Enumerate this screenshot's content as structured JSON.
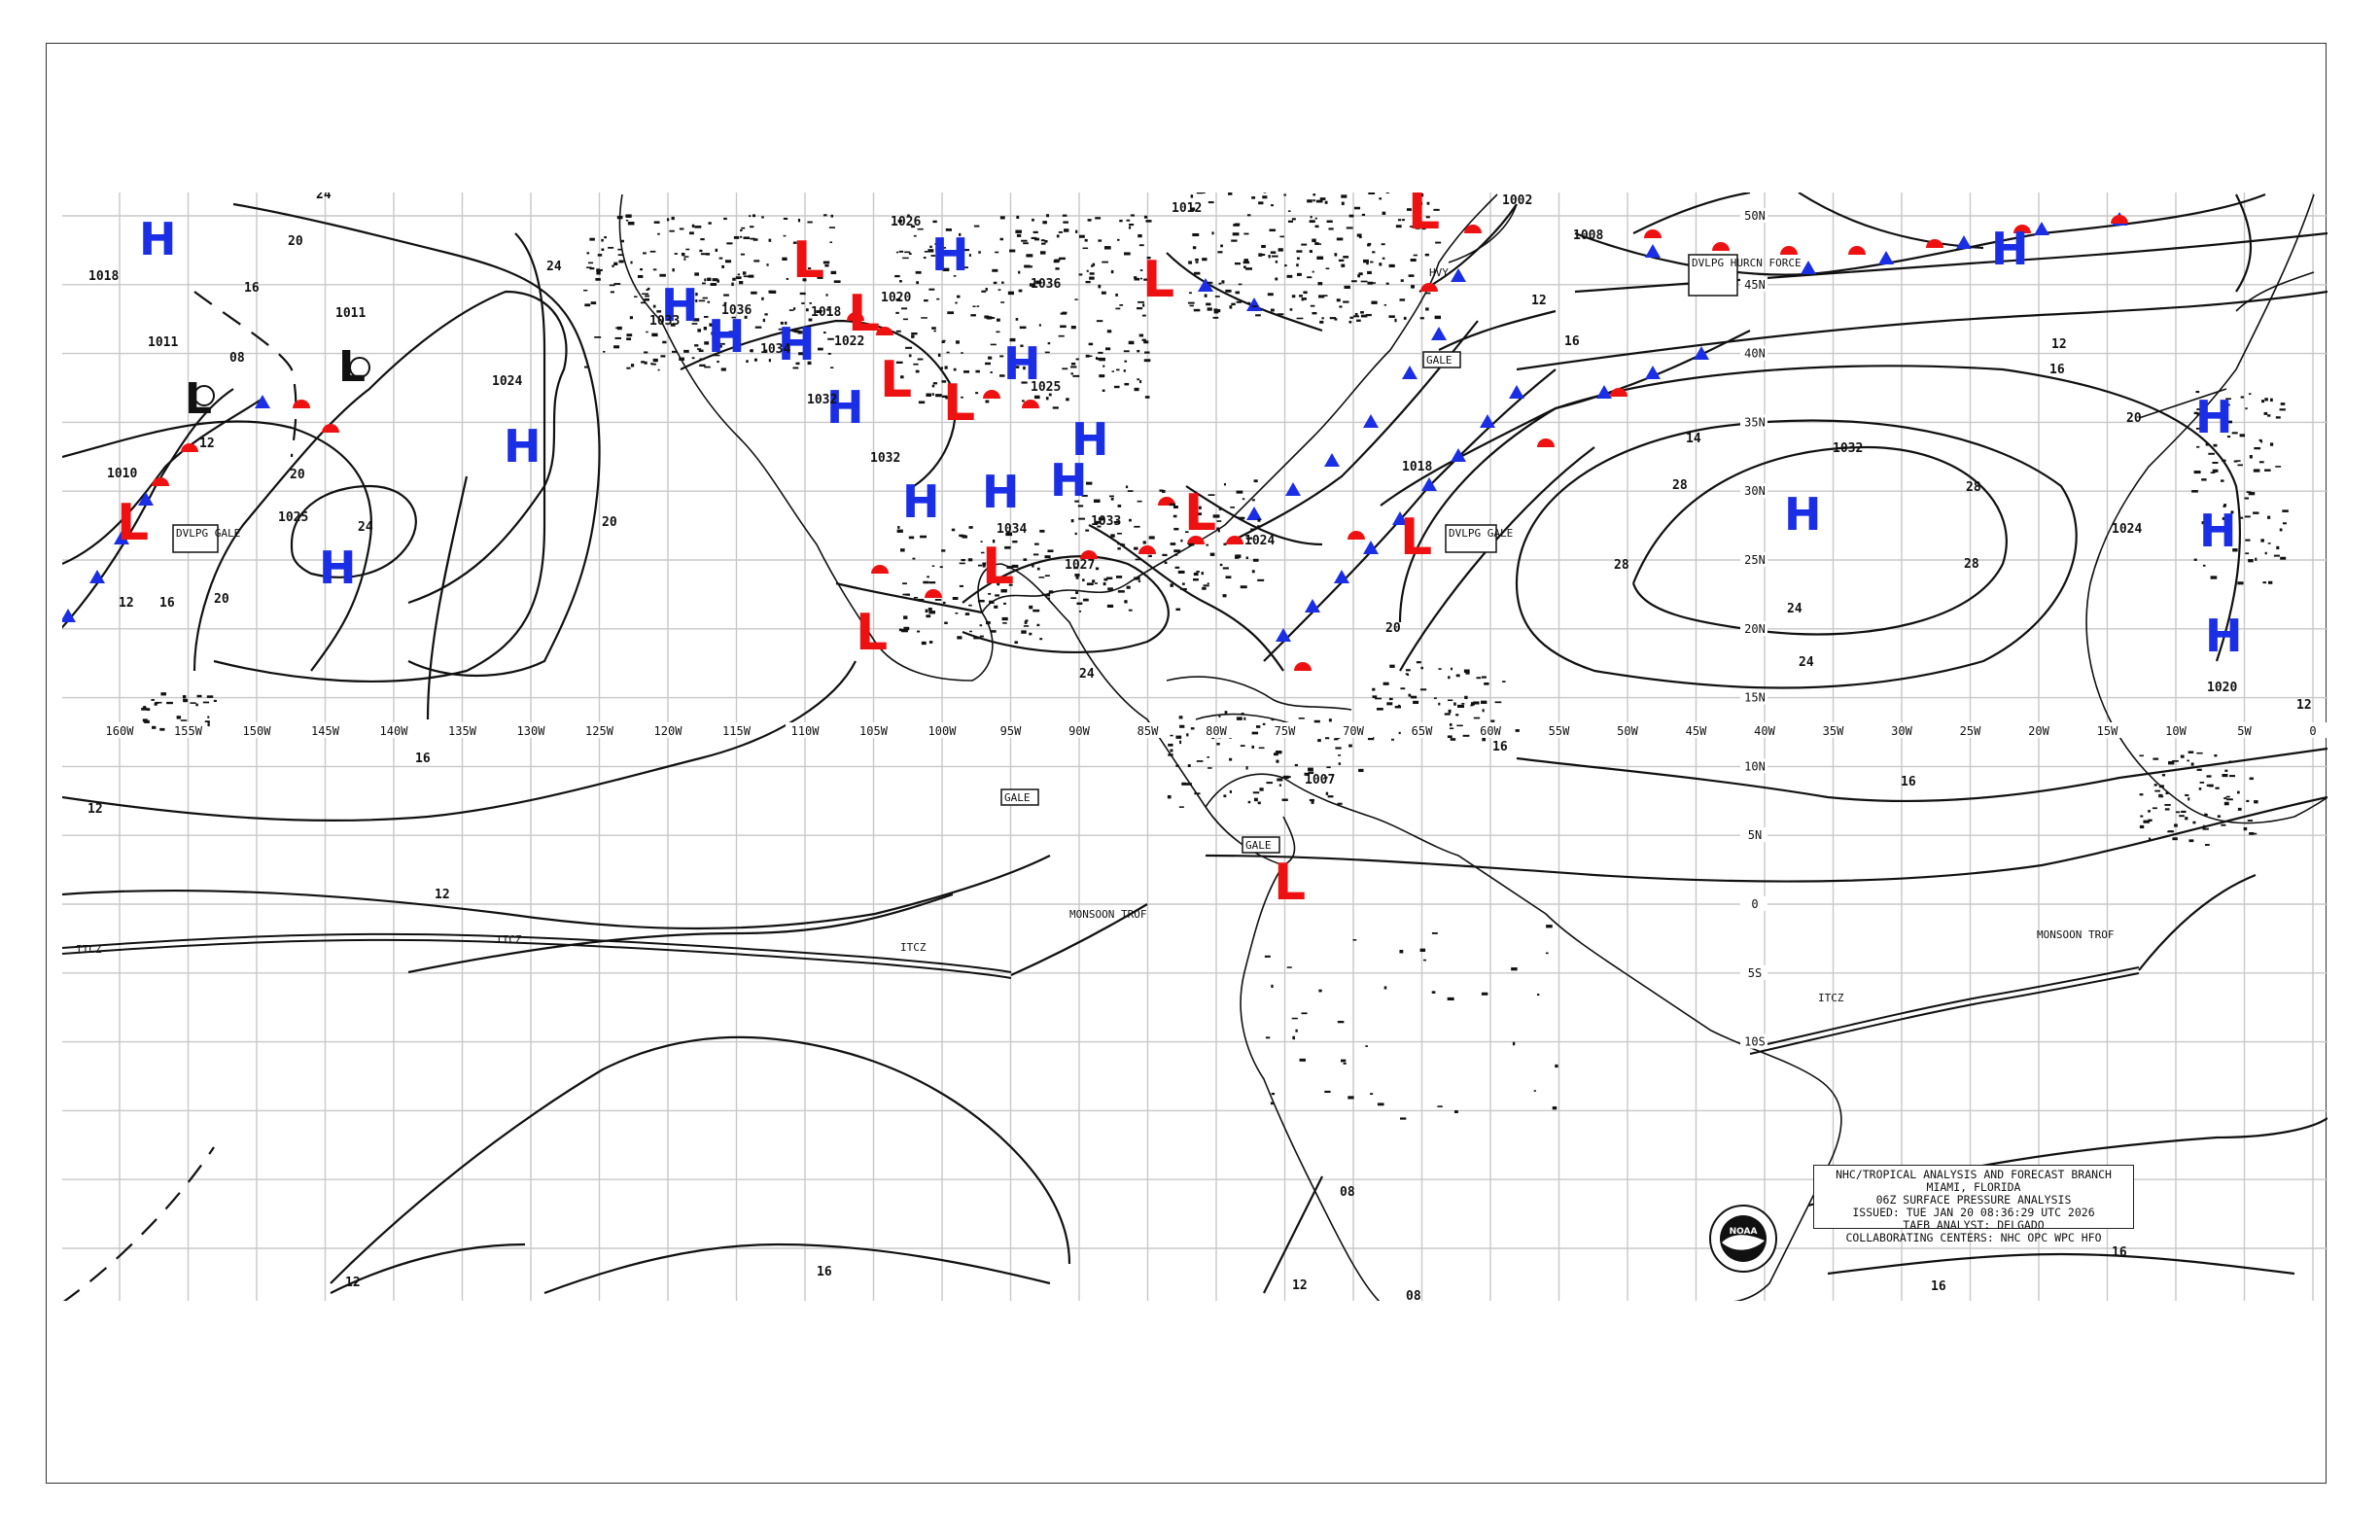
{
  "map": {
    "legend": {
      "line1": "NHC/TROPICAL ANALYSIS AND FORECAST BRANCH",
      "line2": "MIAMI, FLORIDA",
      "line3": "06Z SURFACE PRESSURE ANALYSIS",
      "line4": "ISSUED: TUE JAN 20 08:36:29 UTC 2026",
      "line5": "TAFB ANALYST: DELGADO",
      "line6": "COLLABORATING CENTERS: NHC OPC WPC HFO"
    },
    "logo_text": "NOAA",
    "longitudes": [
      "160W",
      "155W",
      "150W",
      "145W",
      "140W",
      "135W",
      "130W",
      "125W",
      "120W",
      "115W",
      "110W",
      "105W",
      "100W",
      "95W",
      "90W",
      "85W",
      "80W",
      "75W",
      "70W",
      "65W",
      "60W",
      "55W",
      "50W",
      "45W",
      "40W",
      "35W",
      "30W",
      "25W",
      "20W",
      "15W",
      "10W",
      "5W",
      "0"
    ],
    "latitudes": [
      "50N",
      "45N",
      "40N",
      "35N",
      "30N",
      "25N",
      "20N",
      "15N",
      "10N",
      "5N",
      "0",
      "5S",
      "10S"
    ],
    "colors": {
      "high": "#1a2ee6",
      "low": "#ee1111",
      "frame": "#333333"
    },
    "highs": [
      {
        "label": "H"
      },
      {
        "label": "H"
      },
      {
        "label": "H"
      },
      {
        "label": "H"
      },
      {
        "label": "H"
      },
      {
        "label": "H"
      },
      {
        "label": "H"
      },
      {
        "label": "H"
      },
      {
        "label": "H"
      },
      {
        "label": "H"
      },
      {
        "label": "H"
      },
      {
        "label": "H"
      },
      {
        "label": "H"
      },
      {
        "label": "H"
      },
      {
        "label": "H"
      },
      {
        "label": "H"
      },
      {
        "label": "H"
      },
      {
        "label": "H"
      }
    ],
    "lows": [
      {
        "label": "L"
      },
      {
        "label": "L"
      },
      {
        "label": "L"
      },
      {
        "label": "L"
      },
      {
        "label": "L"
      },
      {
        "label": "L"
      },
      {
        "label": "L"
      },
      {
        "label": "L"
      },
      {
        "label": "L"
      },
      {
        "label": "L"
      },
      {
        "label": "L"
      },
      {
        "label": "L"
      }
    ],
    "pressure_labels": [
      "1018",
      "1011",
      "1011",
      "1010",
      "1024",
      "1025",
      "08",
      "1033",
      "1036",
      "1034",
      "1018",
      "1022",
      "1020",
      "1026",
      "1032",
      "1032",
      "1036",
      "1025",
      "1034",
      "1033",
      "1027",
      "1012",
      "1024",
      "1018",
      "1032",
      "1024",
      "1020",
      "1002",
      "1007",
      "1008"
    ],
    "isobar_values": [
      "24",
      "20",
      "16",
      "12",
      "24",
      "20",
      "16",
      "12",
      "28",
      "28",
      "28",
      "28",
      "24",
      "24",
      "20",
      "20",
      "16",
      "16",
      "14",
      "12",
      "12",
      "12",
      "16",
      "16",
      "16",
      "12",
      "12",
      "08",
      "08",
      "12",
      "16",
      "16",
      "20",
      "24",
      "24",
      "20",
      "16",
      "12"
    ],
    "tags": [
      "DVLPG GALE",
      "DVLPG GALE",
      "DVLPG HURCN FORCE",
      "GALE",
      "GALE",
      "GALE",
      "HVY"
    ],
    "features": [
      "ITCZ",
      "ITCZ",
      "ITCZ",
      "ITCZ",
      "MONSOON TROF",
      "MONSOON TROF"
    ]
  }
}
